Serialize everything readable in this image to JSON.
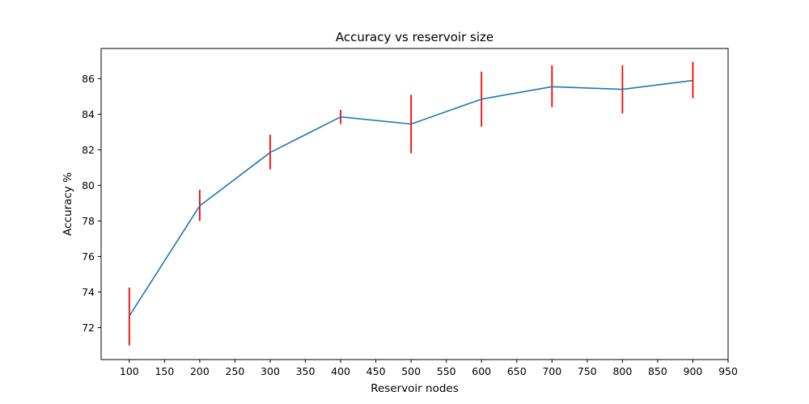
{
  "chart_data": {
    "type": "line",
    "title": "Accuracy vs reservoir size",
    "xlabel": "Reservoir nodes",
    "ylabel": "Accuracy %",
    "xlim": [
      60,
      950
    ],
    "ylim": [
      70.2,
      87.7
    ],
    "xticks": [
      100,
      150,
      200,
      250,
      300,
      350,
      400,
      450,
      500,
      550,
      600,
      650,
      700,
      750,
      800,
      850,
      900,
      950
    ],
    "yticks": [
      72,
      74,
      76,
      78,
      80,
      82,
      84,
      86
    ],
    "grid": false,
    "series": [
      {
        "color": "#1f77b4",
        "error_color": "#ff0000",
        "x": [
          100,
          200,
          300,
          400,
          500,
          600,
          700,
          800,
          900
        ],
        "y": [
          72.65,
          78.85,
          81.85,
          83.85,
          83.45,
          84.85,
          85.55,
          85.4,
          85.9
        ],
        "error_low": [
          71.0,
          78.0,
          80.9,
          83.45,
          81.8,
          83.3,
          84.4,
          84.05,
          84.9
        ],
        "error_high": [
          74.25,
          79.75,
          82.85,
          84.25,
          85.1,
          86.4,
          86.75,
          86.75,
          86.95
        ]
      }
    ]
  }
}
